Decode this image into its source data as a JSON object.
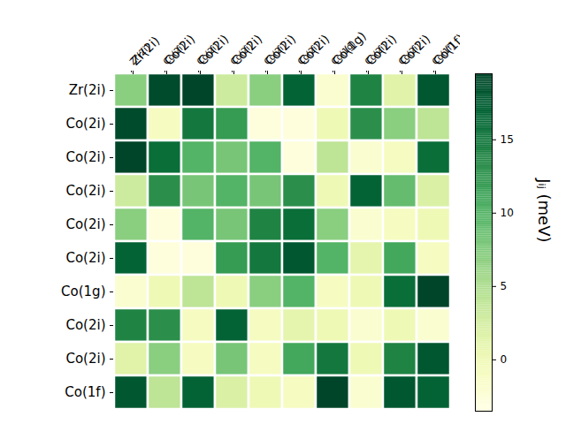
{
  "chart_data": {
    "type": "heatmap",
    "x_categories": [
      "Zr(2i)",
      "Co(2i)",
      "Co(2i)",
      "Co(2i)",
      "Co(2i)",
      "Co(2i)",
      "Co(1g)",
      "Co(2i)",
      "Co(2i)",
      "Co(1f)"
    ],
    "y_categories": [
      "Zr(2i)",
      "Co(2i)",
      "Co(2i)",
      "Co(2i)",
      "Co(2i)",
      "Co(2i)",
      "Co(1g)",
      "Co(2i)",
      "Co(2i)",
      "Co(1f)"
    ],
    "values": [
      [
        7,
        19,
        19.5,
        3,
        7,
        17,
        -2,
        14,
        1.5,
        18
      ],
      [
        19,
        -1,
        15,
        12,
        -3,
        -3,
        0,
        13,
        7,
        4
      ],
      [
        19.5,
        16,
        10,
        8,
        10,
        -3,
        4,
        -2,
        -1,
        16
      ],
      [
        3,
        13,
        8,
        10,
        8,
        13,
        0,
        17,
        9,
        2
      ],
      [
        7,
        -3,
        10,
        8,
        14,
        16,
        7,
        -2,
        -1,
        0
      ],
      [
        17,
        -3,
        -3,
        12,
        15,
        18,
        10,
        1,
        11,
        -1
      ],
      [
        -2,
        0,
        4,
        0,
        7,
        10,
        -1,
        0,
        16,
        19.5
      ],
      [
        14,
        13,
        -1,
        17,
        -1,
        1,
        0,
        -2,
        0,
        -2
      ],
      [
        1.5,
        7,
        -1,
        8,
        -1,
        11,
        15,
        0,
        14,
        18
      ],
      [
        18,
        4,
        17,
        2,
        0,
        -1,
        19.5,
        -2,
        18,
        17
      ]
    ],
    "color": "YlGn",
    "colorbar": {
      "label": "Jᵢⱼ (meV)",
      "range": [
        -3.5,
        19.5
      ],
      "ticks": [
        0,
        5,
        10,
        15
      ]
    }
  }
}
